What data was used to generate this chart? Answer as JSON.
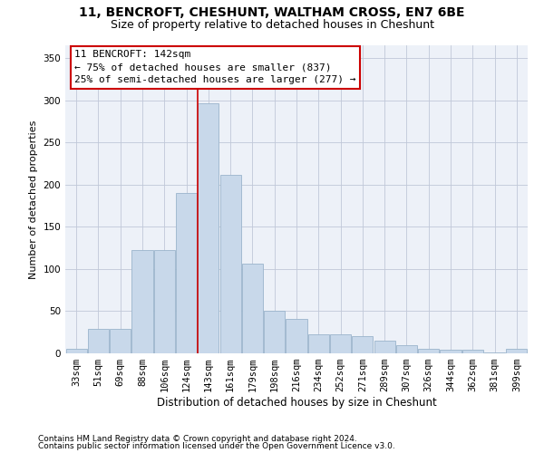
{
  "title": "11, BENCROFT, CHESHUNT, WALTHAM CROSS, EN7 6BE",
  "subtitle": "Size of property relative to detached houses in Cheshunt",
  "xlabel": "Distribution of detached houses by size in Cheshunt",
  "ylabel": "Number of detached properties",
  "categories": [
    "33sqm",
    "51sqm",
    "69sqm",
    "88sqm",
    "106sqm",
    "124sqm",
    "143sqm",
    "161sqm",
    "179sqm",
    "198sqm",
    "216sqm",
    "234sqm",
    "252sqm",
    "271sqm",
    "289sqm",
    "307sqm",
    "326sqm",
    "344sqm",
    "362sqm",
    "381sqm",
    "399sqm"
  ],
  "values": [
    5,
    29,
    29,
    122,
    122,
    190,
    296,
    212,
    106,
    50,
    41,
    23,
    23,
    20,
    15,
    10,
    5,
    4,
    4,
    1,
    5
  ],
  "bar_color": "#c8d8ea",
  "bar_edgecolor": "#9ab4cc",
  "annotation_line1": "11 BENCROFT: 142sqm",
  "annotation_line2": "← 75% of detached houses are smaller (837)",
  "annotation_line3": "25% of semi-detached houses are larger (277) →",
  "annotation_box_facecolor": "#ffffff",
  "annotation_box_edgecolor": "#cc0000",
  "vline_color": "#cc0000",
  "vline_x_index": 6,
  "ylim": [
    0,
    365
  ],
  "yticks": [
    0,
    50,
    100,
    150,
    200,
    250,
    300,
    350
  ],
  "bg_color": "#edf1f8",
  "footer1": "Contains HM Land Registry data © Crown copyright and database right 2024.",
  "footer2": "Contains public sector information licensed under the Open Government Licence v3.0.",
  "title_fontsize": 10,
  "subtitle_fontsize": 9,
  "xlabel_fontsize": 8.5,
  "ylabel_fontsize": 8,
  "tick_fontsize": 7.5,
  "footer_fontsize": 6.5,
  "annotation_fontsize": 8
}
